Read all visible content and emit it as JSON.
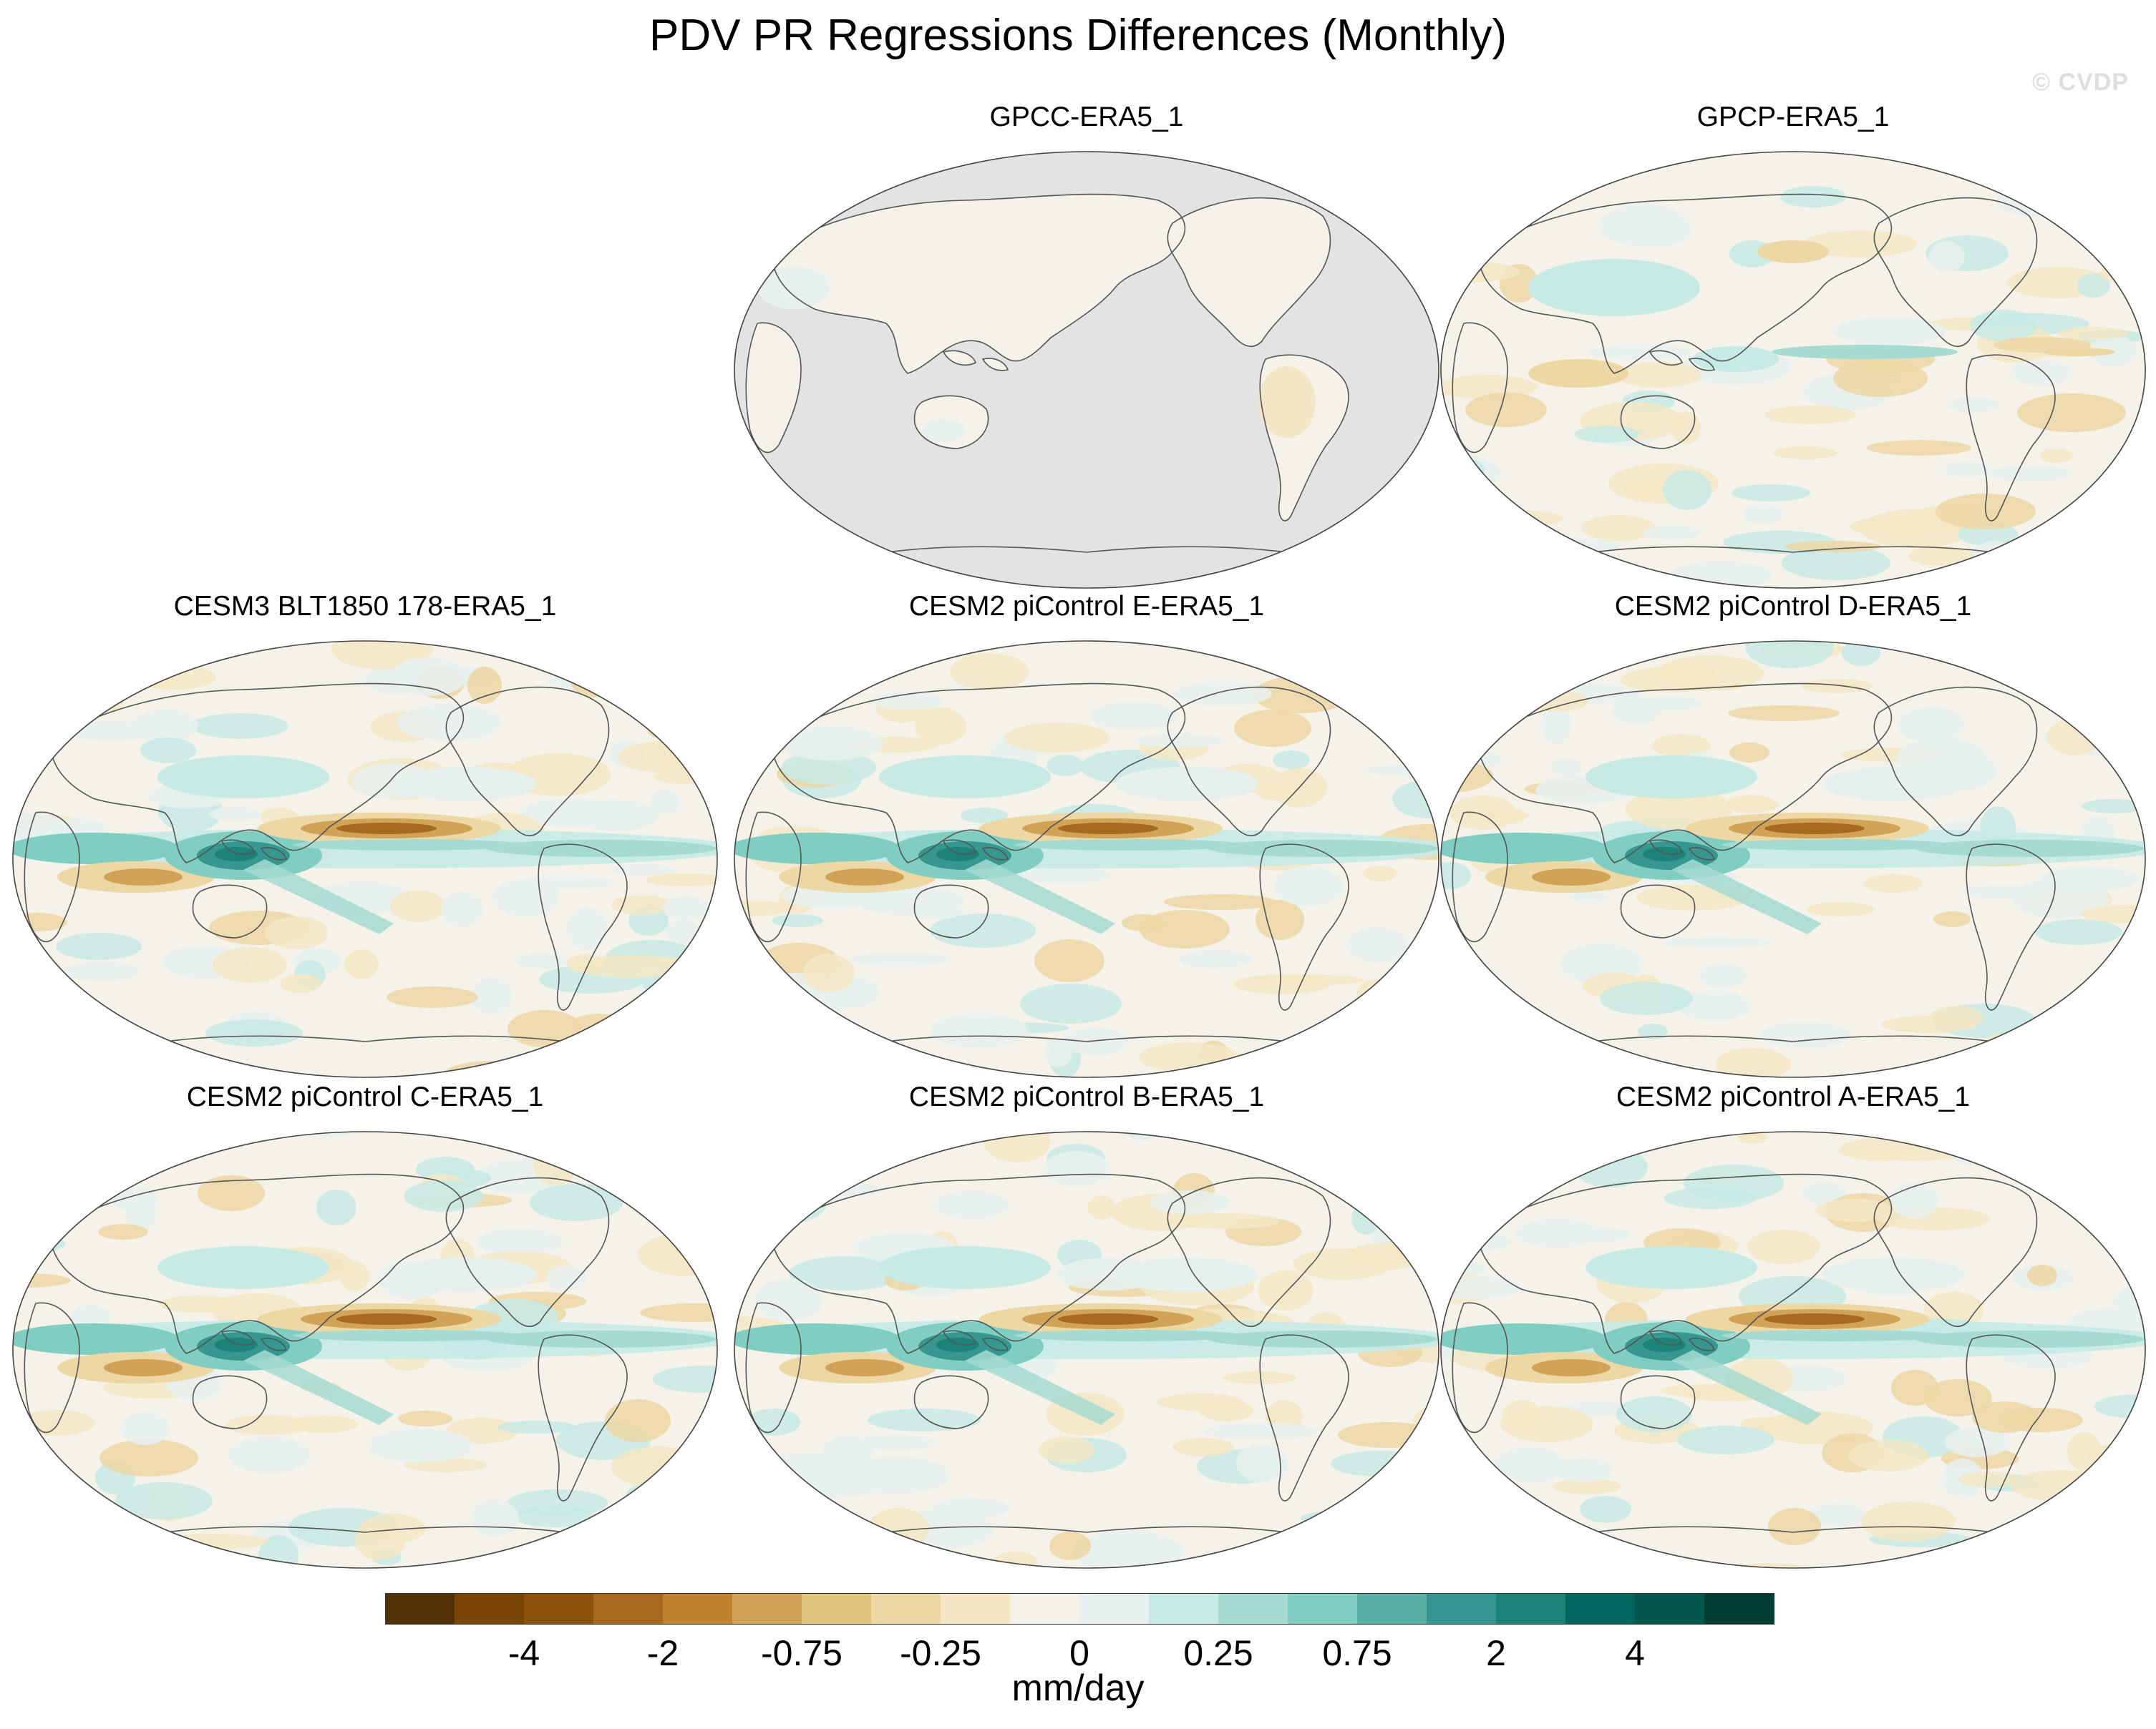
{
  "title": "PDV PR Regressions Differences (Monthly)",
  "credit": "© CVDP",
  "panels": [
    {
      "title": "GPCC-ERA5_1",
      "ocean_masked": true,
      "pattern": "obs_gpcc"
    },
    {
      "title": "GPCP-ERA5_1",
      "ocean_masked": false,
      "pattern": "obs_gpcp"
    },
    {
      "title": "CESM3 BLT1850 178-ERA5_1",
      "ocean_masked": false,
      "pattern": "model"
    },
    {
      "title": "CESM2 piControl E-ERA5_1",
      "ocean_masked": false,
      "pattern": "model"
    },
    {
      "title": "CESM2 piControl D-ERA5_1",
      "ocean_masked": false,
      "pattern": "model"
    },
    {
      "title": "CESM2 piControl C-ERA5_1",
      "ocean_masked": false,
      "pattern": "model"
    },
    {
      "title": "CESM2 piControl B-ERA5_1",
      "ocean_masked": false,
      "pattern": "model"
    },
    {
      "title": "CESM2 piControl A-ERA5_1",
      "ocean_masked": false,
      "pattern": "model"
    }
  ],
  "colorbar": {
    "colors": [
      "#543005",
      "#7a4607",
      "#8c510a",
      "#a6691f",
      "#bf812d",
      "#d0a357",
      "#dfc27d",
      "#ecd7a5",
      "#f3e7c6",
      "#f5f2ea",
      "#e6f1ef",
      "#c7eae5",
      "#a5dbd1",
      "#80cdc1",
      "#5aafa4",
      "#35978f",
      "#1d8277",
      "#01665e",
      "#02564c",
      "#003c30"
    ],
    "labels": [
      "-4",
      "-2",
      "-0.75",
      "-0.25",
      "0",
      "0.25",
      "0.75",
      "2",
      "4"
    ],
    "units": "mm/day"
  },
  "colors": {
    "ocean_mask": "#e3e3e3",
    "neutral": "#f5f2ea",
    "outline": "#555555"
  }
}
